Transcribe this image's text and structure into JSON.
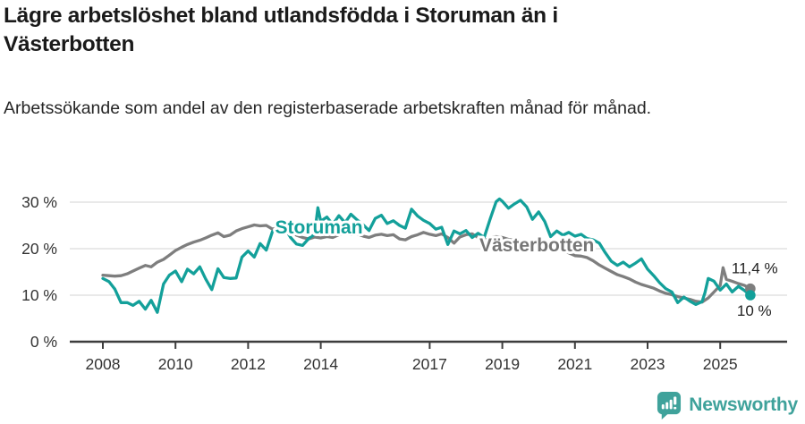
{
  "chart_data": {
    "type": "line",
    "title": "Lägre arbetslöshet bland utlandsfödda i Storuman än i Västerbotten",
    "subtitle": "Arbetssökande som andel av den registerbaserade arbetskraften månad för månad.",
    "unit_suffix": " %",
    "xlabel": "",
    "ylabel": "",
    "ylim": [
      0,
      33
    ],
    "xlim": [
      2007.1,
      2026.4
    ],
    "grid": true,
    "legend_position": "inline-labels-on-lines",
    "y_ticks": [
      0,
      10,
      20,
      30
    ],
    "x_ticks": [
      2008,
      2010,
      2012,
      2014,
      2017,
      2019,
      2021,
      2023,
      2025
    ],
    "axis_color": "#3d3d3d",
    "gridline_color": "#dcdcdc",
    "tick_label_color": "#333333",
    "annotation_color": "#212121",
    "series": [
      {
        "name": "Västerbotten",
        "color": "#7E7E7E",
        "end_label": "11,4 %",
        "end_value": 11.4,
        "label_anchor": {
          "x": 2019.95,
          "y": 21.0
        },
        "end_label_offset": {
          "dx": -21,
          "dy": -17
        },
        "points": [
          [
            2008.0,
            14.3
          ],
          [
            2008.17,
            14.2
          ],
          [
            2008.33,
            14.1
          ],
          [
            2008.5,
            14.2
          ],
          [
            2008.67,
            14.6
          ],
          [
            2008.83,
            15.2
          ],
          [
            2009.0,
            15.8
          ],
          [
            2009.17,
            16.4
          ],
          [
            2009.33,
            16.1
          ],
          [
            2009.5,
            17.1
          ],
          [
            2009.67,
            17.7
          ],
          [
            2009.83,
            18.6
          ],
          [
            2010.0,
            19.6
          ],
          [
            2010.17,
            20.3
          ],
          [
            2010.33,
            20.9
          ],
          [
            2010.5,
            21.4
          ],
          [
            2010.67,
            21.8
          ],
          [
            2010.83,
            22.3
          ],
          [
            2011.0,
            22.9
          ],
          [
            2011.17,
            23.4
          ],
          [
            2011.33,
            22.6
          ],
          [
            2011.5,
            22.9
          ],
          [
            2011.67,
            23.8
          ],
          [
            2011.83,
            24.3
          ],
          [
            2012.0,
            24.7
          ],
          [
            2012.17,
            25.1
          ],
          [
            2012.33,
            24.9
          ],
          [
            2012.5,
            25.0
          ],
          [
            2012.67,
            24.2
          ],
          [
            2012.83,
            24.6
          ],
          [
            2013.0,
            24.8
          ],
          [
            2013.17,
            23.8
          ],
          [
            2013.33,
            22.9
          ],
          [
            2013.5,
            22.4
          ],
          [
            2013.67,
            22.1
          ],
          [
            2013.83,
            22.5
          ],
          [
            2014.0,
            22.3
          ],
          [
            2014.17,
            22.6
          ],
          [
            2014.33,
            22.4
          ],
          [
            2014.5,
            23.0
          ],
          [
            2014.67,
            23.3
          ],
          [
            2014.83,
            23.0
          ],
          [
            2015.0,
            23.2
          ],
          [
            2015.17,
            22.7
          ],
          [
            2015.33,
            22.4
          ],
          [
            2015.5,
            22.9
          ],
          [
            2015.67,
            23.1
          ],
          [
            2015.83,
            22.8
          ],
          [
            2016.0,
            23.0
          ],
          [
            2016.17,
            22.1
          ],
          [
            2016.33,
            21.9
          ],
          [
            2016.5,
            22.6
          ],
          [
            2016.67,
            23.0
          ],
          [
            2016.83,
            23.5
          ],
          [
            2017.0,
            23.1
          ],
          [
            2017.17,
            22.8
          ],
          [
            2017.33,
            23.2
          ],
          [
            2017.5,
            22.4
          ],
          [
            2017.67,
            21.2
          ],
          [
            2017.83,
            22.5
          ],
          [
            2018.0,
            23.0
          ],
          [
            2018.17,
            23.2
          ],
          [
            2018.33,
            22.4
          ],
          [
            2018.5,
            21.8
          ],
          [
            2018.67,
            22.3
          ],
          [
            2018.83,
            22.6
          ],
          [
            2019.0,
            22.4
          ],
          [
            2019.17,
            22.0
          ],
          [
            2019.33,
            21.8
          ],
          [
            2019.5,
            21.5
          ],
          [
            2019.67,
            21.2
          ],
          [
            2019.83,
            21.0
          ],
          [
            2020.0,
            20.8
          ],
          [
            2020.17,
            20.5
          ],
          [
            2020.33,
            20.3
          ],
          [
            2020.5,
            20.0
          ],
          [
            2020.67,
            19.6
          ],
          [
            2020.83,
            19.1
          ],
          [
            2021.0,
            18.5
          ],
          [
            2021.17,
            18.4
          ],
          [
            2021.33,
            18.1
          ],
          [
            2021.5,
            17.4
          ],
          [
            2021.67,
            16.5
          ],
          [
            2021.83,
            15.8
          ],
          [
            2022.0,
            15.1
          ],
          [
            2022.17,
            14.4
          ],
          [
            2022.33,
            14.0
          ],
          [
            2022.5,
            13.5
          ],
          [
            2022.67,
            12.8
          ],
          [
            2022.83,
            12.3
          ],
          [
            2023.0,
            11.9
          ],
          [
            2023.17,
            11.5
          ],
          [
            2023.33,
            10.9
          ],
          [
            2023.5,
            10.4
          ],
          [
            2023.67,
            10.1
          ],
          [
            2023.83,
            9.7
          ],
          [
            2024.0,
            9.4
          ],
          [
            2024.17,
            9.1
          ],
          [
            2024.33,
            8.7
          ],
          [
            2024.5,
            8.5
          ],
          [
            2024.67,
            9.4
          ],
          [
            2024.83,
            10.7
          ],
          [
            2025.0,
            12.1
          ],
          [
            2025.08,
            15.9
          ],
          [
            2025.17,
            13.4
          ],
          [
            2025.33,
            13.0
          ],
          [
            2025.5,
            12.5
          ],
          [
            2025.67,
            12.1
          ],
          [
            2025.83,
            11.4
          ]
        ]
      },
      {
        "name": "Storuman",
        "color": "#13A09A",
        "end_label": "10 %",
        "end_value": 10.0,
        "label_anchor": {
          "x": 2013.95,
          "y": 24.8
        },
        "end_label_offset": {
          "dx": -15,
          "dy": 23
        },
        "points": [
          [
            2008.0,
            13.6
          ],
          [
            2008.17,
            12.9
          ],
          [
            2008.33,
            11.3
          ],
          [
            2008.5,
            8.4
          ],
          [
            2008.67,
            8.4
          ],
          [
            2008.83,
            7.8
          ],
          [
            2009.0,
            8.7
          ],
          [
            2009.17,
            7.0
          ],
          [
            2009.33,
            8.9
          ],
          [
            2009.5,
            6.3
          ],
          [
            2009.67,
            12.4
          ],
          [
            2009.83,
            14.3
          ],
          [
            2010.0,
            15.2
          ],
          [
            2010.17,
            12.9
          ],
          [
            2010.33,
            15.6
          ],
          [
            2010.5,
            14.6
          ],
          [
            2010.67,
            16.1
          ],
          [
            2010.83,
            13.5
          ],
          [
            2011.0,
            11.2
          ],
          [
            2011.17,
            15.7
          ],
          [
            2011.33,
            13.8
          ],
          [
            2011.5,
            13.6
          ],
          [
            2011.67,
            13.7
          ],
          [
            2011.83,
            18.2
          ],
          [
            2012.0,
            19.5
          ],
          [
            2012.17,
            18.2
          ],
          [
            2012.33,
            21.1
          ],
          [
            2012.5,
            19.7
          ],
          [
            2012.67,
            23.7
          ],
          [
            2012.83,
            24.2
          ],
          [
            2013.0,
            24.6
          ],
          [
            2013.17,
            22.4
          ],
          [
            2013.33,
            21.0
          ],
          [
            2013.5,
            20.7
          ],
          [
            2013.67,
            22.2
          ],
          [
            2013.83,
            23.1
          ],
          [
            2013.92,
            28.8
          ],
          [
            2014.0,
            25.9
          ],
          [
            2014.17,
            26.8
          ],
          [
            2014.33,
            25.2
          ],
          [
            2014.5,
            27.1
          ],
          [
            2014.67,
            25.6
          ],
          [
            2014.83,
            27.4
          ],
          [
            2015.0,
            26.2
          ],
          [
            2015.17,
            25.1
          ],
          [
            2015.33,
            23.9
          ],
          [
            2015.5,
            26.5
          ],
          [
            2015.67,
            27.2
          ],
          [
            2015.83,
            25.4
          ],
          [
            2016.0,
            26.0
          ],
          [
            2016.17,
            25.0
          ],
          [
            2016.33,
            24.4
          ],
          [
            2016.5,
            28.5
          ],
          [
            2016.67,
            27.0
          ],
          [
            2016.83,
            26.1
          ],
          [
            2017.0,
            25.4
          ],
          [
            2017.17,
            24.2
          ],
          [
            2017.33,
            24.6
          ],
          [
            2017.5,
            20.9
          ],
          [
            2017.67,
            23.8
          ],
          [
            2017.83,
            23.2
          ],
          [
            2018.0,
            23.9
          ],
          [
            2018.17,
            22.4
          ],
          [
            2018.33,
            23.3
          ],
          [
            2018.5,
            22.4
          ],
          [
            2018.67,
            26.5
          ],
          [
            2018.83,
            30.1
          ],
          [
            2018.92,
            30.7
          ],
          [
            2019.0,
            30.2
          ],
          [
            2019.17,
            28.7
          ],
          [
            2019.33,
            29.6
          ],
          [
            2019.5,
            30.4
          ],
          [
            2019.67,
            29.0
          ],
          [
            2019.83,
            26.3
          ],
          [
            2020.0,
            27.9
          ],
          [
            2020.17,
            25.8
          ],
          [
            2020.33,
            22.6
          ],
          [
            2020.5,
            23.8
          ],
          [
            2020.67,
            22.9
          ],
          [
            2020.83,
            23.5
          ],
          [
            2021.0,
            22.7
          ],
          [
            2021.17,
            23.1
          ],
          [
            2021.33,
            22.2
          ],
          [
            2021.5,
            21.9
          ],
          [
            2021.67,
            21.2
          ],
          [
            2021.83,
            19.2
          ],
          [
            2022.0,
            17.3
          ],
          [
            2022.17,
            16.4
          ],
          [
            2022.33,
            17.1
          ],
          [
            2022.5,
            16.1
          ],
          [
            2022.67,
            16.9
          ],
          [
            2022.83,
            17.8
          ],
          [
            2023.0,
            15.6
          ],
          [
            2023.17,
            14.2
          ],
          [
            2023.33,
            12.7
          ],
          [
            2023.5,
            11.4
          ],
          [
            2023.67,
            10.7
          ],
          [
            2023.83,
            8.4
          ],
          [
            2024.0,
            9.6
          ],
          [
            2024.17,
            8.7
          ],
          [
            2024.33,
            8.0
          ],
          [
            2024.5,
            8.6
          ],
          [
            2024.58,
            10.5
          ],
          [
            2024.67,
            13.6
          ],
          [
            2024.83,
            13.0
          ],
          [
            2025.0,
            11.1
          ],
          [
            2025.17,
            12.4
          ],
          [
            2025.33,
            10.7
          ],
          [
            2025.5,
            11.9
          ],
          [
            2025.67,
            11.0
          ],
          [
            2025.83,
            10.0
          ]
        ]
      }
    ]
  },
  "footer": {
    "brand": "Newsworthy"
  }
}
